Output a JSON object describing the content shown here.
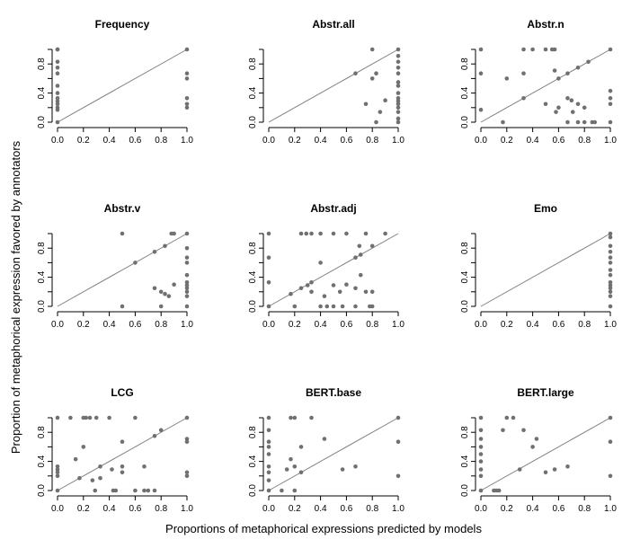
{
  "chart_data": {
    "type": "scatter",
    "xlabel": "Proportions of metaphorical expressions predicted by models",
    "ylabel": "Proportion of metaphorical expression favored by annotators",
    "x_ticks": [
      "0.0",
      "0.2",
      "0.4",
      "0.6",
      "0.8",
      "1.0"
    ],
    "y_ticks": [
      "0.0",
      "0.4",
      "0.8"
    ],
    "xlim": [
      0,
      1
    ],
    "ylim": [
      0,
      1
    ],
    "reference_line": "y = x",
    "panels": [
      {
        "title": "Frequency",
        "points": [
          [
            0,
            1.0
          ],
          [
            0,
            1.0
          ],
          [
            0,
            0.83
          ],
          [
            0,
            0.75
          ],
          [
            0,
            0.67
          ],
          [
            0,
            0.5
          ],
          [
            0,
            0.4
          ],
          [
            0,
            0.33
          ],
          [
            0,
            0.29
          ],
          [
            0,
            0.25
          ],
          [
            0,
            0.2
          ],
          [
            0,
            0.17
          ],
          [
            0,
            0.0
          ],
          [
            1,
            1.0
          ],
          [
            1,
            0.67
          ],
          [
            1,
            0.6
          ],
          [
            1,
            0.33
          ],
          [
            1,
            0.25
          ],
          [
            1,
            0.2
          ]
        ]
      },
      {
        "title": "Abstr.all",
        "points": [
          [
            0.67,
            0.67
          ],
          [
            0.75,
            0.25
          ],
          [
            0.8,
            1.0
          ],
          [
            0.8,
            0.6
          ],
          [
            0.83,
            0.67
          ],
          [
            0.83,
            0.0
          ],
          [
            0.86,
            0.14
          ],
          [
            0.9,
            0.3
          ],
          [
            1,
            1.0
          ],
          [
            1,
            0.91
          ],
          [
            1,
            0.83
          ],
          [
            1,
            0.75
          ],
          [
            1,
            0.67
          ],
          [
            1,
            0.55
          ],
          [
            1,
            0.5
          ],
          [
            1,
            0.4
          ],
          [
            1,
            0.33
          ],
          [
            1,
            0.29
          ],
          [
            1,
            0.25
          ],
          [
            1,
            0.2
          ],
          [
            1,
            0.14
          ],
          [
            1,
            0.05
          ],
          [
            1,
            0.0
          ]
        ]
      },
      {
        "title": "Abstr.n",
        "points": [
          [
            0,
            1.0
          ],
          [
            0,
            0.67
          ],
          [
            0,
            0.17
          ],
          [
            0.17,
            0.0
          ],
          [
            0.2,
            0.6
          ],
          [
            0.33,
            1.0
          ],
          [
            0.33,
            0.67
          ],
          [
            0.33,
            0.33
          ],
          [
            0.4,
            1.0
          ],
          [
            0.5,
            1.0
          ],
          [
            0.5,
            0.25
          ],
          [
            0.55,
            1.0
          ],
          [
            0.57,
            1.0
          ],
          [
            0.57,
            0.71
          ],
          [
            0.58,
            0.14
          ],
          [
            0.6,
            0.6
          ],
          [
            0.6,
            0.2
          ],
          [
            0.67,
            0.67
          ],
          [
            0.67,
            0.33
          ],
          [
            0.67,
            0.0
          ],
          [
            0.7,
            0.3
          ],
          [
            0.71,
            0.14
          ],
          [
            0.75,
            0.75
          ],
          [
            0.75,
            0.25
          ],
          [
            0.75,
            0.0
          ],
          [
            0.8,
            0.2
          ],
          [
            0.8,
            0.0
          ],
          [
            0.83,
            0.83
          ],
          [
            0.86,
            0.0
          ],
          [
            0.88,
            0.0
          ],
          [
            1,
            1.0
          ],
          [
            1,
            0.43
          ],
          [
            1,
            0.33
          ],
          [
            1,
            0.25
          ],
          [
            1,
            0.0
          ]
        ]
      },
      {
        "title": "Abstr.v",
        "points": [
          [
            0.5,
            1.0
          ],
          [
            0.5,
            0.0
          ],
          [
            0.6,
            0.6
          ],
          [
            0.75,
            0.75
          ],
          [
            0.75,
            0.25
          ],
          [
            0.8,
            0.2
          ],
          [
            0.8,
            0.0
          ],
          [
            0.83,
            0.83
          ],
          [
            0.83,
            0.17
          ],
          [
            0.86,
            0.14
          ],
          [
            0.88,
            1.0
          ],
          [
            0.9,
            1.0
          ],
          [
            0.9,
            0.3
          ],
          [
            1,
            1.0
          ],
          [
            1,
            0.8
          ],
          [
            1,
            0.67
          ],
          [
            1,
            0.6
          ],
          [
            1,
            0.43
          ],
          [
            1,
            0.33
          ],
          [
            1,
            0.29
          ],
          [
            1,
            0.25
          ],
          [
            1,
            0.2
          ],
          [
            1,
            0.14
          ],
          [
            1,
            0.0
          ]
        ]
      },
      {
        "title": "Abstr.adj",
        "points": [
          [
            0,
            1.0
          ],
          [
            0,
            0.67
          ],
          [
            0,
            0.33
          ],
          [
            0,
            0.0
          ],
          [
            0.17,
            0.17
          ],
          [
            0.2,
            0.0
          ],
          [
            0.25,
            1.0
          ],
          [
            0.25,
            0.25
          ],
          [
            0.29,
            1.0
          ],
          [
            0.3,
            0.29
          ],
          [
            0.33,
            1.0
          ],
          [
            0.33,
            0.33
          ],
          [
            0.33,
            0.2
          ],
          [
            0.4,
            1.0
          ],
          [
            0.4,
            0.6
          ],
          [
            0.4,
            0.0
          ],
          [
            0.43,
            0.14
          ],
          [
            0.45,
            0.0
          ],
          [
            0.5,
            1.0
          ],
          [
            0.5,
            0.29
          ],
          [
            0.5,
            0.0
          ],
          [
            0.55,
            0.2
          ],
          [
            0.57,
            0.0
          ],
          [
            0.6,
            1.0
          ],
          [
            0.6,
            0.3
          ],
          [
            0.67,
            0.67
          ],
          [
            0.67,
            0.25
          ],
          [
            0.67,
            0.0
          ],
          [
            0.7,
            0.83
          ],
          [
            0.71,
            0.71
          ],
          [
            0.71,
            0.43
          ],
          [
            0.75,
            1.0
          ],
          [
            0.75,
            0.2
          ],
          [
            0.78,
            0.0
          ],
          [
            0.8,
            0.83
          ],
          [
            0.8,
            0.2
          ],
          [
            0.8,
            0.0
          ],
          [
            0.9,
            1.0
          ]
        ]
      },
      {
        "title": "Emo",
        "points": [
          [
            1,
            1.0
          ],
          [
            1,
            0.95
          ],
          [
            1,
            0.83
          ],
          [
            1,
            0.75
          ],
          [
            1,
            0.67
          ],
          [
            1,
            0.6
          ],
          [
            1,
            0.5
          ],
          [
            1,
            0.43
          ],
          [
            1,
            0.33
          ],
          [
            1,
            0.29
          ],
          [
            1,
            0.25
          ],
          [
            1,
            0.2
          ],
          [
            1,
            0.14
          ],
          [
            1,
            0.0
          ]
        ]
      },
      {
        "title": "LCG",
        "points": [
          [
            0,
            1.0
          ],
          [
            0,
            0.33
          ],
          [
            0,
            0.29
          ],
          [
            0,
            0.25
          ],
          [
            0,
            0.2
          ],
          [
            0,
            0.0
          ],
          [
            0.1,
            1.0
          ],
          [
            0.14,
            0.43
          ],
          [
            0.17,
            0.17
          ],
          [
            0.2,
            1.0
          ],
          [
            0.2,
            0.6
          ],
          [
            0.22,
            1.0
          ],
          [
            0.25,
            1.0
          ],
          [
            0.27,
            0.14
          ],
          [
            0.29,
            0.0
          ],
          [
            0.3,
            1.0
          ],
          [
            0.33,
            0.33
          ],
          [
            0.33,
            0.17
          ],
          [
            0.4,
            1.0
          ],
          [
            0.42,
            0.29
          ],
          [
            0.43,
            0.0
          ],
          [
            0.45,
            0.0
          ],
          [
            0.5,
            0.67
          ],
          [
            0.5,
            0.33
          ],
          [
            0.5,
            0.25
          ],
          [
            0.6,
            1.0
          ],
          [
            0.6,
            0.0
          ],
          [
            0.67,
            0.33
          ],
          [
            0.67,
            0.0
          ],
          [
            0.7,
            0.0
          ],
          [
            0.75,
            0.75
          ],
          [
            0.75,
            0.0
          ],
          [
            0.8,
            0.83
          ],
          [
            1,
            1.0
          ],
          [
            1,
            0.71
          ],
          [
            1,
            0.67
          ],
          [
            1,
            0.25
          ],
          [
            1,
            0.2
          ]
        ]
      },
      {
        "title": "BERT.base",
        "points": [
          [
            0,
            1.0
          ],
          [
            0,
            0.83
          ],
          [
            0,
            0.67
          ],
          [
            0,
            0.6
          ],
          [
            0,
            0.5
          ],
          [
            0,
            0.33
          ],
          [
            0,
            0.25
          ],
          [
            0,
            0.14
          ],
          [
            0,
            0.0
          ],
          [
            0.1,
            0.0
          ],
          [
            0.14,
            0.29
          ],
          [
            0.17,
            0.43
          ],
          [
            0.17,
            1.0
          ],
          [
            0.2,
            1.0
          ],
          [
            0.2,
            0.33
          ],
          [
            0.2,
            0.0
          ],
          [
            0.25,
            0.6
          ],
          [
            0.25,
            0.25
          ],
          [
            0.33,
            1.0
          ],
          [
            0.43,
            0.71
          ],
          [
            0.57,
            0.29
          ],
          [
            0.67,
            0.33
          ],
          [
            1,
            1.0
          ],
          [
            1,
            0.67
          ],
          [
            1,
            0.2
          ]
        ]
      },
      {
        "title": "BERT.large",
        "points": [
          [
            0,
            1.0
          ],
          [
            0,
            0.83
          ],
          [
            0,
            0.71
          ],
          [
            0,
            0.6
          ],
          [
            0,
            0.5
          ],
          [
            0,
            0.4
          ],
          [
            0,
            0.29
          ],
          [
            0,
            0.2
          ],
          [
            0,
            0.0
          ],
          [
            0.1,
            0.0
          ],
          [
            0.12,
            0.0
          ],
          [
            0.14,
            0.0
          ],
          [
            0.17,
            0.83
          ],
          [
            0.2,
            1.0
          ],
          [
            0.25,
            1.0
          ],
          [
            0.3,
            0.29
          ],
          [
            0.33,
            0.83
          ],
          [
            0.4,
            0.6
          ],
          [
            0.43,
            0.71
          ],
          [
            0.5,
            0.25
          ],
          [
            0.57,
            0.29
          ],
          [
            0.67,
            0.33
          ],
          [
            1,
            1.0
          ],
          [
            1,
            0.67
          ],
          [
            1,
            0.2
          ]
        ]
      }
    ]
  }
}
